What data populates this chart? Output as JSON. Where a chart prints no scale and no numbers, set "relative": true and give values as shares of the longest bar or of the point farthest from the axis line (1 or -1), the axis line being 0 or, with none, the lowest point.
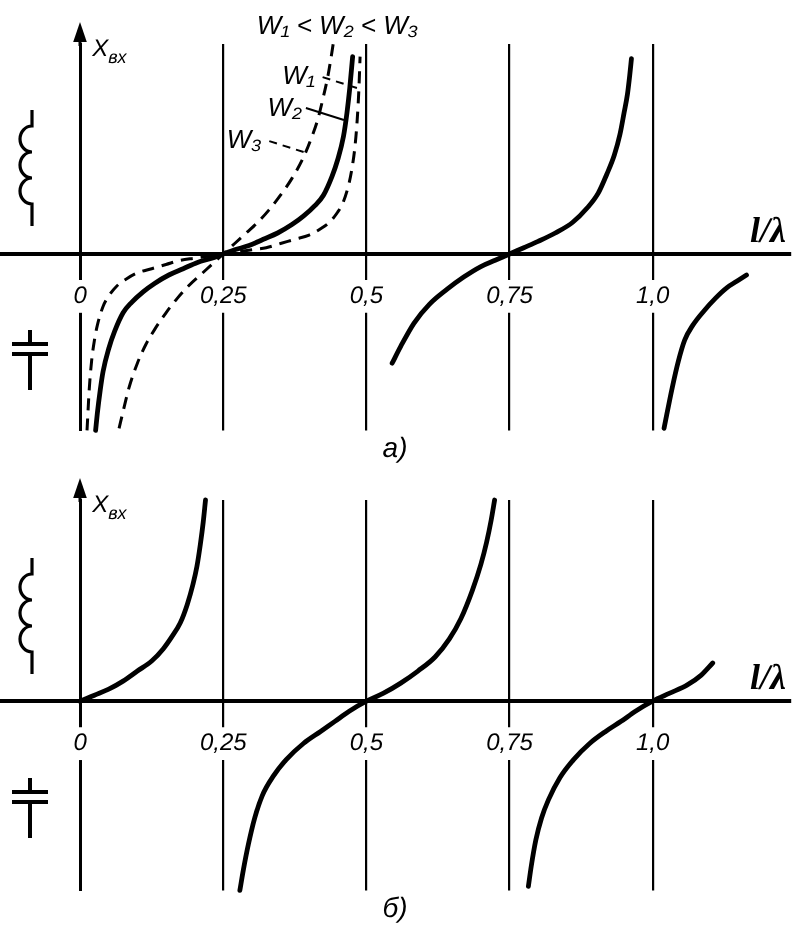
{
  "chart_data": [
    {
      "type": "line",
      "title": "а)",
      "xlabel": "l/λ",
      "ylabel": "X$_{вх}$",
      "annotations": [
        "W₁ < W₂ < W₃"
      ],
      "relative": true,
      "xlim": [
        -0.14,
        1.24
      ],
      "xticks": [
        0,
        {
          "value": 0.25,
          "label": "0,25"
        },
        {
          "value": 0.5,
          "label": "0,5"
        },
        {
          "value": 0.75,
          "label": "0,75"
        },
        {
          "value": 1,
          "label": "1,0"
        }
      ],
      "grid": "x",
      "legend": "top",
      "series": [
        {
          "name": "W₁",
          "color": "#000000",
          "line_style": "dashed",
          "x": [
            0.012,
            0.016,
            0.02,
            0.025,
            0.03,
            0.04,
            0.05,
            0.065,
            0.08,
            0.1,
            0.125,
            0.15,
            0.175,
            0.2,
            0.225,
            0.25,
            0.275,
            0.3,
            0.325,
            0.35,
            0.375,
            0.4,
            0.42,
            0.435,
            0.45,
            0.46,
            0.47,
            0.475,
            0.48,
            0.484,
            0.487,
            0.489
          ],
          "values": [
            -0.84,
            -0.64,
            -0.51,
            -0.41,
            -0.34,
            -0.25,
            -0.2,
            -0.15,
            -0.12,
            -0.09,
            -0.07,
            -0.05,
            -0.03,
            -0.02,
            -0.01,
            0,
            0.01,
            0.02,
            0.03,
            0.05,
            0.07,
            0.09,
            0.12,
            0.15,
            0.2,
            0.25,
            0.34,
            0.41,
            0.51,
            0.64,
            0.79,
            0.94
          ]
        },
        {
          "name": "W₂",
          "color": "#000000",
          "x": [
            0.027,
            0.03,
            0.035,
            0.04,
            0.05,
            0.06,
            0.075,
            0.09,
            0.11,
            0.13,
            0.155,
            0.18,
            0.205,
            0.23,
            0.25,
            0.27,
            0.295,
            0.32,
            0.345,
            0.37,
            0.39,
            0.41,
            0.425,
            0.44,
            0.45,
            0.46,
            0.466,
            0.471,
            0.476,
            0.5,
            0.545,
            0.56,
            0.583,
            0.61,
            0.64,
            0.67,
            0.7,
            0.725,
            0.75,
            0.775,
            0.8,
            0.83,
            0.86,
            0.886,
            0.905,
            0.92,
            0.933,
            0.943,
            0.95,
            0.956,
            0.96,
            0.963,
            1,
            1.02,
            1.034,
            1.045,
            1.056,
            1.07,
            1.09,
            1.11,
            1.13,
            1.147,
            1.164
          ],
          "values": [
            -0.84,
            -0.76,
            -0.65,
            -0.56,
            -0.45,
            -0.37,
            -0.28,
            -0.23,
            -0.18,
            -0.14,
            -0.1,
            -0.07,
            -0.04,
            -0.02,
            0,
            0.02,
            0.04,
            0.07,
            0.1,
            0.14,
            0.18,
            0.23,
            0.28,
            0.37,
            0.45,
            0.56,
            0.67,
            0.79,
            0.94,
            null,
            -0.52,
            -0.44,
            -0.33,
            -0.24,
            -0.17,
            -0.11,
            -0.06,
            -0.03,
            0,
            0.03,
            0.06,
            0.1,
            0.15,
            0.22,
            0.29,
            0.38,
            0.47,
            0.57,
            0.67,
            0.76,
            0.85,
            0.93,
            null,
            -0.83,
            -0.64,
            -0.51,
            -0.41,
            -0.34,
            -0.27,
            -0.21,
            -0.16,
            -0.13,
            -0.1
          ]
        },
        {
          "name": "W₃",
          "color": "#000000",
          "line_style": "dashed",
          "x": [
            0.068,
            0.075,
            0.085,
            0.1,
            0.115,
            0.13,
            0.15,
            0.17,
            0.19,
            0.21,
            0.23,
            0.25,
            0.27,
            0.29,
            0.31,
            0.33,
            0.35,
            0.37,
            0.39,
            0.405,
            0.415,
            0.425,
            0.433,
            0.438,
            0.442
          ],
          "values": [
            -0.83,
            -0.75,
            -0.64,
            -0.52,
            -0.43,
            -0.36,
            -0.28,
            -0.21,
            -0.15,
            -0.1,
            -0.05,
            0,
            0.05,
            0.1,
            0.15,
            0.21,
            0.28,
            0.36,
            0.46,
            0.56,
            0.64,
            0.75,
            0.85,
            0.93,
            1
          ]
        }
      ]
    },
    {
      "type": "line",
      "title": "б)",
      "xlabel": "l/λ",
      "ylabel": "X$_{вх}$",
      "relative": true,
      "xlim": [
        -0.14,
        1.24
      ],
      "xticks": [
        0,
        {
          "value": 0.25,
          "label": "0,25"
        },
        {
          "value": 0.5,
          "label": "0,5"
        },
        {
          "value": 0.75,
          "label": "0,75"
        },
        {
          "value": 1,
          "label": "1,0"
        }
      ],
      "grid": "x",
      "series": [
        {
          "color": "#000000",
          "x": [
            0,
            0.025,
            0.05,
            0.075,
            0.1,
            0.125,
            0.145,
            0.16,
            0.175,
            0.187,
            0.197,
            0.204,
            0.21,
            0.215,
            0.219,
            0.25,
            0.279,
            0.285,
            0.294,
            0.305,
            0.318,
            0.338,
            0.36,
            0.39,
            0.42,
            0.445,
            0.47,
            0.5,
            0.53,
            0.56,
            0.59,
            0.62,
            0.645,
            0.665,
            0.685,
            0.7,
            0.71,
            0.718,
            0.724,
            0.75,
            0.783,
            0.788,
            0.796,
            0.806,
            0.818,
            0.838,
            0.862,
            0.89,
            0.918,
            0.945,
            0.97,
            1,
            1.03,
            1.06,
            1.085,
            1.105
          ],
          "values": [
            0,
            0.03,
            0.06,
            0.1,
            0.15,
            0.2,
            0.26,
            0.32,
            0.39,
            0.48,
            0.58,
            0.67,
            0.78,
            0.89,
            1,
            null,
            -0.94,
            -0.84,
            -0.71,
            -0.58,
            -0.47,
            -0.37,
            -0.29,
            -0.21,
            -0.15,
            -0.1,
            -0.05,
            0,
            0.04,
            0.09,
            0.15,
            0.22,
            0.31,
            0.41,
            0.55,
            0.68,
            0.79,
            0.9,
            1,
            null,
            -0.92,
            -0.82,
            -0.69,
            -0.58,
            -0.49,
            -0.38,
            -0.29,
            -0.21,
            -0.15,
            -0.1,
            -0.05,
            0,
            0.04,
            0.08,
            0.13,
            0.19
          ]
        }
      ]
    }
  ]
}
